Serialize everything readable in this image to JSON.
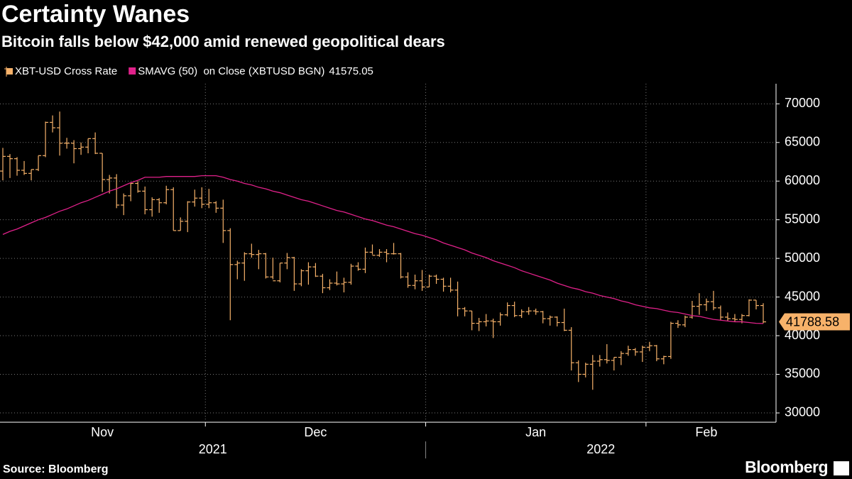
{
  "chart_data": {
    "type": "ohlc",
    "title": "Certainty Wanes",
    "subtitle": "Bitcoin falls below $42,000 amid renewed geopolitical dears",
    "source": "Source: Bloomberg",
    "logo": "Bloomberg",
    "ylim": [
      28800,
      72600
    ],
    "yticks": [
      30000,
      35000,
      40000,
      45000,
      50000,
      55000,
      60000,
      65000,
      70000
    ],
    "grid": true,
    "categories": [
      "Nov",
      "Nov",
      "Nov",
      "Nov",
      "Nov",
      "Nov",
      "Nov",
      "Nov",
      "Nov",
      "Nov",
      "Nov",
      "Nov",
      "Nov",
      "Nov",
      "Nov",
      "Nov",
      "Nov",
      "Nov",
      "Nov",
      "Nov",
      "Nov",
      "Nov",
      "Nov",
      "Nov",
      "Nov",
      "Nov",
      "Nov",
      "Nov",
      "Nov",
      "Dec",
      "Dec",
      "Dec",
      "Dec",
      "Dec",
      "Dec",
      "Dec",
      "Dec",
      "Dec",
      "Dec",
      "Dec",
      "Dec",
      "Dec",
      "Dec",
      "Dec",
      "Dec",
      "Dec",
      "Dec",
      "Dec",
      "Dec",
      "Dec",
      "Dec",
      "Dec",
      "Dec",
      "Dec",
      "Dec",
      "Dec",
      "Dec",
      "Dec",
      "Dec",
      "Dec",
      "Jan",
      "Jan",
      "Jan",
      "Jan",
      "Jan",
      "Jan",
      "Jan",
      "Jan",
      "Jan",
      "Jan",
      "Jan",
      "Jan",
      "Jan",
      "Jan",
      "Jan",
      "Jan",
      "Jan",
      "Jan",
      "Jan",
      "Jan",
      "Jan",
      "Jan",
      "Jan",
      "Jan",
      "Jan",
      "Jan",
      "Jan",
      "Jan",
      "Jan",
      "Jan",
      "Jan",
      "Feb",
      "Feb",
      "Feb",
      "Feb",
      "Feb",
      "Feb",
      "Feb",
      "Feb",
      "Feb",
      "Feb",
      "Feb",
      "Feb",
      "Feb",
      "Feb",
      "Feb",
      "Feb",
      "Feb"
    ],
    "year_categories": [
      "2021",
      "2021",
      "2021",
      "2021",
      "2021",
      "2021",
      "2021",
      "2021",
      "2021",
      "2021",
      "2021",
      "2021",
      "2021",
      "2021",
      "2021",
      "2021",
      "2021",
      "2021",
      "2021",
      "2021",
      "2021",
      "2021",
      "2021",
      "2021",
      "2021",
      "2021",
      "2021",
      "2021",
      "2021",
      "2021",
      "2021",
      "2021",
      "2021",
      "2021",
      "2021",
      "2021",
      "2021",
      "2021",
      "2021",
      "2021",
      "2021",
      "2021",
      "2021",
      "2021",
      "2021",
      "2021",
      "2021",
      "2021",
      "2021",
      "2021",
      "2021",
      "2021",
      "2021",
      "2021",
      "2021",
      "2021",
      "2021",
      "2021",
      "2021",
      "2021",
      "2022",
      "2022",
      "2022",
      "2022",
      "2022",
      "2022",
      "2022",
      "2022",
      "2022",
      "2022",
      "2022",
      "2022",
      "2022",
      "2022",
      "2022",
      "2022",
      "2022",
      "2022",
      "2022",
      "2022",
      "2022",
      "2022",
      "2022",
      "2022",
      "2022",
      "2022",
      "2022",
      "2022",
      "2022",
      "2022",
      "2022",
      "2022",
      "2022",
      "2022",
      "2022",
      "2022",
      "2022",
      "2022",
      "2022",
      "2022",
      "2022",
      "2022",
      "2022",
      "2022",
      "2022",
      "2022",
      "2022",
      "2022"
    ],
    "series": [
      {
        "name": "XBT-USD Cross Rate",
        "color": "#f7b26a",
        "open": [
          61300,
          63200,
          62900,
          61400,
          61000,
          61500,
          63300,
          67600,
          66900,
          64900,
          64900,
          64200,
          64400,
          65500,
          63600,
          60200,
          60400,
          56900,
          58100,
          59700,
          58700,
          56300,
          57600,
          57200,
          58900,
          53600,
          54800,
          57300,
          57800,
          57000,
          57200,
          56500,
          53600,
          49200,
          49400,
          50600,
          50500,
          50600,
          47600,
          47100,
          49400,
          50100,
          46700,
          48400,
          48900,
          47700,
          46200,
          46800,
          46700,
          46900,
          49000,
          48600,
          50800,
          50400,
          50800,
          50600,
          50600,
          47600,
          46500,
          47100,
          46300,
          47700,
          47300,
          46400,
          45900,
          43500,
          43200,
          41600,
          41800,
          41900,
          41800,
          42700,
          43900,
          42600,
          43100,
          43200,
          43100,
          42200,
          42400,
          41700,
          40700,
          36500,
          35000,
          36300,
          36700,
          36900,
          36800,
          37200,
          37700,
          38200,
          37900,
          38500,
          38700,
          37000,
          37300,
          41600,
          41400,
          42400,
          43800,
          44000,
          44400,
          43600,
          42400,
          42200,
          42100,
          42600,
          44600,
          43900
        ],
        "high": [
          64300,
          63500,
          63100,
          62600,
          61500,
          63300,
          67700,
          68500,
          69000,
          65600,
          65300,
          65000,
          65500,
          66300,
          63600,
          60800,
          60900,
          58400,
          59800,
          60000,
          59300,
          57900,
          57800,
          59400,
          59200,
          55300,
          57400,
          58900,
          59200,
          59000,
          57400,
          57600,
          53900,
          49700,
          50800,
          51900,
          51100,
          50700,
          50100,
          49400,
          50700,
          50200,
          48600,
          49500,
          49400,
          48000,
          47300,
          48300,
          47500,
          49300,
          49500,
          51400,
          51800,
          51200,
          51200,
          52000,
          50700,
          48200,
          47900,
          48500,
          47900,
          47900,
          47500,
          47500,
          47000,
          43700,
          43200,
          42300,
          42800,
          42200,
          43000,
          44300,
          44400,
          43400,
          43700,
          43500,
          43200,
          42600,
          42500,
          43500,
          41100,
          36800,
          36500,
          37500,
          37500,
          38900,
          37200,
          38000,
          38700,
          38400,
          38700,
          39200,
          38800,
          37400,
          41800,
          42000,
          42600,
          44500,
          45500,
          44800,
          45800,
          43900,
          43000,
          42800,
          42800,
          44700,
          44600,
          44200
        ],
        "low": [
          60100,
          60400,
          60700,
          60800,
          60100,
          61300,
          63100,
          66300,
          63300,
          64200,
          62300,
          63400,
          63600,
          63500,
          58600,
          58400,
          56500,
          55600,
          57400,
          58500,
          55700,
          55400,
          55900,
          57000,
          53600,
          53600,
          53400,
          56700,
          56500,
          56500,
          55900,
          52000,
          42000,
          47300,
          47100,
          50100,
          48600,
          47400,
          47300,
          46900,
          48600,
          45800,
          46400,
          46600,
          47600,
          45500,
          45900,
          46500,
          45600,
          46600,
          48400,
          48100,
          50500,
          50200,
          49500,
          50500,
          47400,
          46200,
          46000,
          45800,
          46300,
          46700,
          45700,
          45600,
          42500,
          42500,
          40700,
          40600,
          41200,
          39700,
          41300,
          42500,
          42400,
          42300,
          42700,
          42700,
          41600,
          41300,
          41200,
          40600,
          35500,
          34000,
          34600,
          33000,
          36000,
          36400,
          35500,
          36200,
          37400,
          37400,
          36600,
          38000,
          36700,
          36300,
          37000,
          41000,
          41100,
          42200,
          42700,
          43200,
          43300,
          42000,
          41900,
          41800,
          41600,
          42500,
          43400,
          41600
        ],
        "close": [
          63200,
          62900,
          61400,
          61000,
          61500,
          63300,
          67600,
          66900,
          64900,
          64900,
          64200,
          64400,
          65500,
          63600,
          60200,
          60400,
          56900,
          58100,
          59700,
          58700,
          56300,
          57600,
          57200,
          58900,
          53600,
          54800,
          57300,
          57800,
          57000,
          57200,
          56500,
          53600,
          49200,
          49400,
          50600,
          50500,
          50600,
          47600,
          47100,
          49400,
          50100,
          46700,
          48400,
          48900,
          47700,
          46200,
          46800,
          46700,
          46900,
          49000,
          48600,
          50800,
          50400,
          50800,
          50600,
          50600,
          47600,
          46500,
          47100,
          46300,
          47700,
          47300,
          46400,
          45900,
          43500,
          43200,
          41600,
          41800,
          41900,
          41800,
          42700,
          43900,
          42600,
          43100,
          43200,
          43100,
          42200,
          42400,
          41700,
          40700,
          36500,
          35000,
          36300,
          36700,
          36900,
          36800,
          37200,
          37700,
          38200,
          37900,
          38500,
          38700,
          37000,
          37300,
          41600,
          41400,
          42400,
          43800,
          44000,
          44400,
          43600,
          42400,
          42200,
          42100,
          42600,
          44600,
          43900,
          41788.58
        ]
      },
      {
        "name": "SMAVG (50)  on Close (XBTUSD BGN)",
        "color": "#e0218a",
        "values": [
          53100,
          53500,
          53800,
          54200,
          54600,
          55000,
          55300,
          55700,
          56100,
          56400,
          56800,
          57200,
          57500,
          57900,
          58300,
          58700,
          59000,
          59400,
          59800,
          60100,
          60500,
          60500,
          60500,
          60600,
          60600,
          60600,
          60600,
          60600,
          60700,
          60700,
          60700,
          60500,
          60200,
          60000,
          59700,
          59500,
          59200,
          59000,
          58700,
          58500,
          58200,
          57900,
          57600,
          57400,
          57100,
          56800,
          56500,
          56200,
          56000,
          55700,
          55400,
          55100,
          54900,
          54600,
          54300,
          54100,
          53800,
          53500,
          53200,
          53000,
          52700,
          52400,
          52000,
          51700,
          51400,
          51100,
          50700,
          50400,
          50100,
          49700,
          49400,
          49100,
          48800,
          48400,
          48100,
          47800,
          47500,
          47200,
          46800,
          46500,
          46200,
          46000,
          45700,
          45500,
          45200,
          45000,
          44800,
          44500,
          44300,
          44000,
          43800,
          43600,
          43500,
          43300,
          43100,
          43000,
          42800,
          42600,
          42500,
          42300,
          42100,
          42000,
          41900,
          41800,
          41800,
          41700,
          41600,
          41575.05
        ]
      }
    ]
  }
}
